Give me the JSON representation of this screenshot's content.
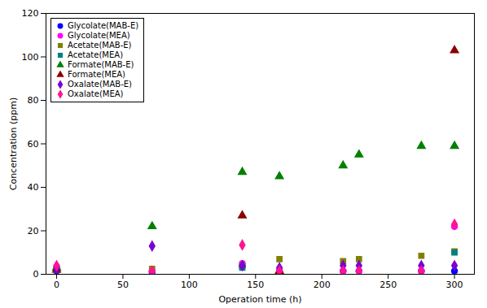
{
  "chart_data": {
    "type": "scatter",
    "xlabel": "Operation time (h)",
    "ylabel": "Concentration (ppm)",
    "xlim": [
      -8,
      315
    ],
    "ylim": [
      0,
      120
    ],
    "xticks": [
      0,
      50,
      100,
      150,
      200,
      250,
      300
    ],
    "yticks": [
      0,
      20,
      40,
      60,
      80,
      100,
      120
    ],
    "grid": false,
    "legend": "upper left",
    "series": [
      {
        "name": "Glycolate(MAB-E)",
        "color": "#0000FF",
        "marker": "circle",
        "x": [
          0,
          72,
          140,
          168,
          216,
          228,
          275,
          300
        ],
        "values": [
          1.5,
          1.0,
          3.5,
          1.5,
          1.5,
          1.5,
          1.5,
          1.5
        ]
      },
      {
        "name": "Glycolate(MEA)",
        "color": "#FF00FF",
        "marker": "circle",
        "x": [
          0,
          72,
          140,
          168,
          216,
          228,
          275,
          300
        ],
        "values": [
          3.5,
          1.5,
          5.0,
          1.5,
          1.5,
          1.5,
          1.5,
          22.0
        ]
      },
      {
        "name": "Acetate(MAB-E)",
        "color": "#808000",
        "marker": "square",
        "x": [
          0,
          72,
          140,
          168,
          216,
          228,
          275,
          300
        ],
        "values": [
          2.0,
          2.5,
          4.0,
          7.0,
          6.0,
          7.0,
          8.5,
          10.5
        ]
      },
      {
        "name": "Acetate(MEA)",
        "color": "#008080",
        "marker": "square",
        "x": [
          0,
          140,
          300
        ],
        "values": [
          2.0,
          3.0,
          10.0
        ]
      },
      {
        "name": "Formate(MAB-E)",
        "color": "#008000",
        "marker": "triangle",
        "x": [
          0,
          72,
          140,
          168,
          216,
          228,
          275,
          300
        ],
        "values": [
          3.0,
          22.0,
          47.0,
          45.0,
          50.0,
          55.0,
          59.0,
          59.0
        ]
      },
      {
        "name": "Formate(MEA)",
        "color": "#8B0000",
        "marker": "triangle",
        "x": [
          0,
          140,
          168,
          300
        ],
        "values": [
          2.0,
          27.0,
          1.5,
          103.0
        ]
      },
      {
        "name": "Oxalate(MAB-E)",
        "color": "#7B00D4",
        "marker": "diamond",
        "x": [
          0,
          72,
          140,
          168,
          216,
          228,
          275,
          300
        ],
        "values": [
          2.5,
          13.0,
          4.0,
          3.0,
          4.0,
          4.0,
          4.0,
          4.0
        ]
      },
      {
        "name": "Oxalate(MEA)",
        "color": "#FF1493",
        "marker": "diamond",
        "x": [
          0,
          72,
          140,
          168,
          216,
          228,
          275,
          300
        ],
        "values": [
          4.0,
          1.5,
          13.5,
          1.5,
          1.5,
          1.5,
          1.5,
          23.0
        ]
      }
    ]
  }
}
